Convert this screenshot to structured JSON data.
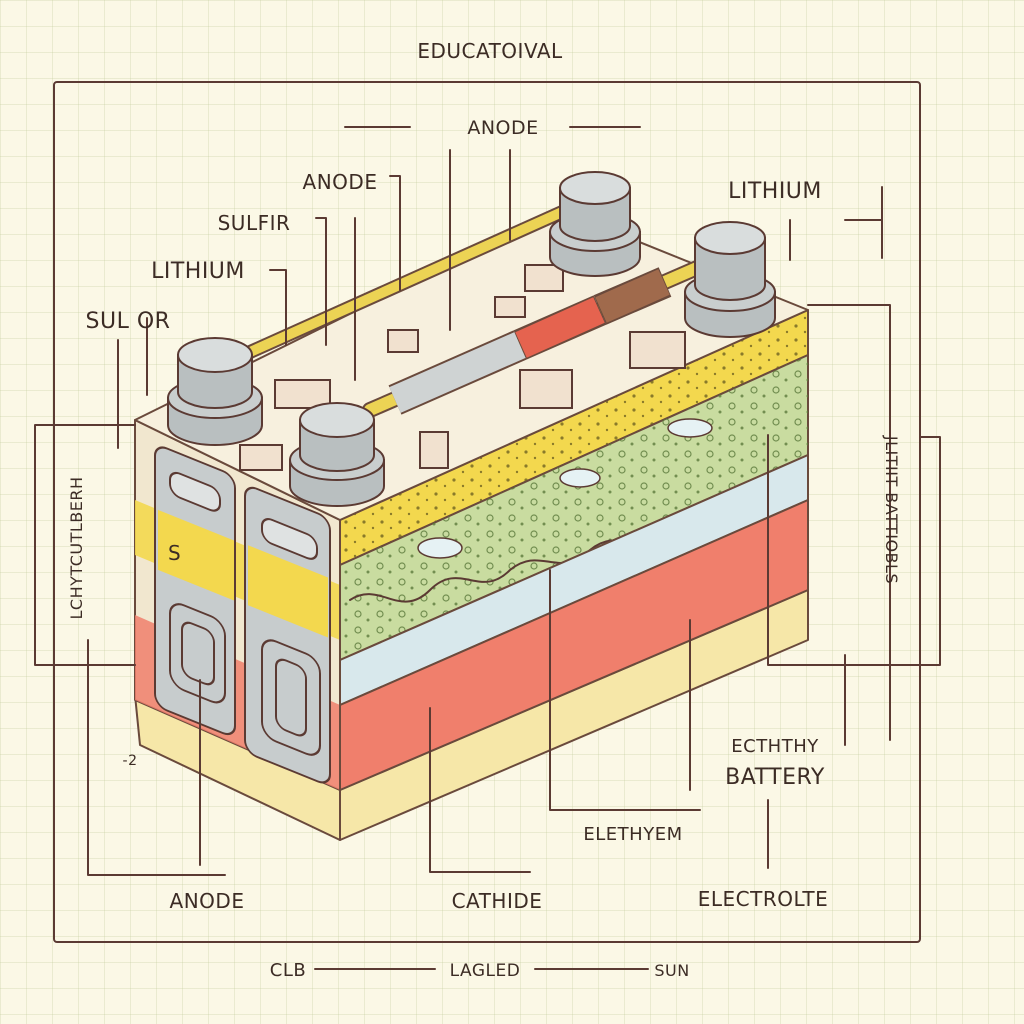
{
  "title": "EDUCATOIVAL",
  "labels": {
    "anode_top": "ANODE",
    "anode_left": "ANODE",
    "sulfir": "SULFIR",
    "lithium_left": "LITHIUM",
    "sulor": "SUL OR",
    "lithium_right": "LITHIUM",
    "side_left": "LCHYTCUTLBERH",
    "side_right": "JLITIIT BATTIOBLS",
    "minus_mark": "-2",
    "s_mark": "S",
    "ecththy": "ECTHTHY",
    "battery": "BATTERY",
    "elethyem": "ELETHYEM",
    "anode_bottom": "ANODE",
    "cathide": "CATHIDE",
    "electrolte": "ELECTROLTE"
  },
  "footer": {
    "left": "CLB",
    "center": "LAGLED",
    "right": "SUN"
  },
  "colors": {
    "background": "#fbf8e6",
    "outline": "#5b3a33",
    "yellow_layer": "#f3d84e",
    "green_layer": "#c9dca0",
    "blue_layer": "#d8e8ec",
    "red_layer": "#f07f6c",
    "base_layer": "#f6e7a8",
    "terminal": "#b9bfc0",
    "rod": "#ecd354"
  }
}
